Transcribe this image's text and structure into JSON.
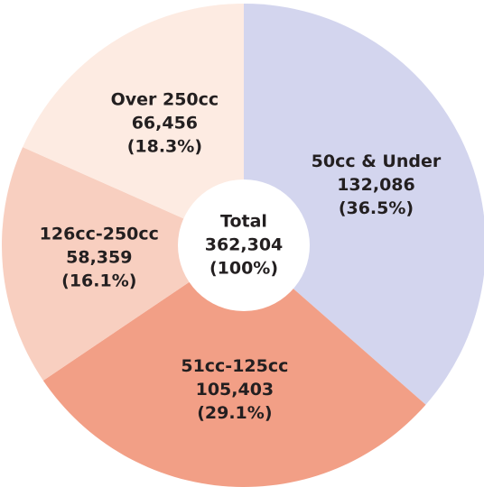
{
  "chart_data": {
    "type": "donut",
    "categories": [
      "50cc & Under",
      "51cc-125cc",
      "126cc-250cc",
      "Over 250cc"
    ],
    "values": [
      132086,
      105403,
      58359,
      66456
    ],
    "value_labels": [
      "132,086",
      "105,403",
      "58,359",
      "66,456"
    ],
    "percents": [
      36.5,
      29.1,
      16.1,
      18.3
    ],
    "percent_labels": [
      "(36.5%)",
      "(29.1%)",
      "(16.1%)",
      "(18.3%)"
    ],
    "colors": [
      "#d3d5ee",
      "#f29f86",
      "#f8cfc0",
      "#fdebe2"
    ],
    "total": {
      "title": "Total",
      "value": 362304,
      "value_label": "362,304",
      "percent": 100,
      "percent_label": "(100%)"
    }
  }
}
